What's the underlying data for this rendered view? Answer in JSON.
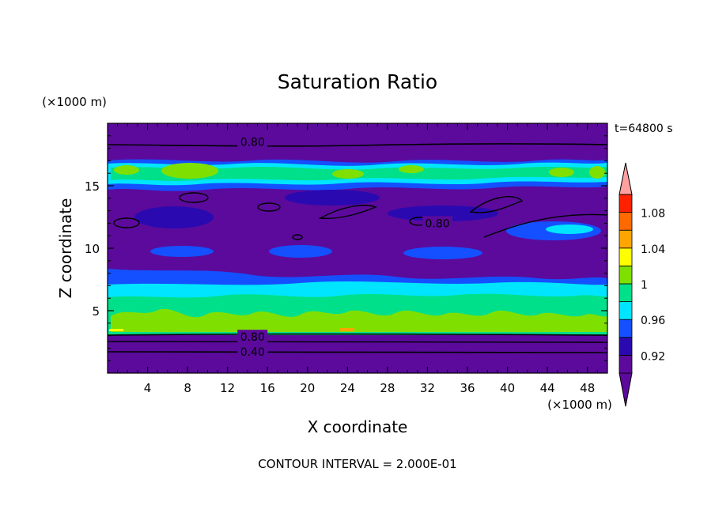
{
  "chart_data": {
    "type": "heatmap",
    "title": "Saturation Ratio",
    "xlabel": "X coordinate",
    "ylabel": "Z coordinate",
    "x_unit": "(×1000 m)",
    "y_unit": "(×1000 m)",
    "time_label": "t=64800 s",
    "footer": "CONTOUR INTERVAL = 2.000E-01",
    "xlim": [
      0,
      50
    ],
    "ylim": [
      0,
      20
    ],
    "x_ticks": [
      "4",
      "8",
      "12",
      "16",
      "20",
      "24",
      "28",
      "32",
      "36",
      "40",
      "44",
      "48"
    ],
    "x_tick_values": [
      4,
      8,
      12,
      16,
      20,
      24,
      28,
      32,
      36,
      40,
      44,
      48
    ],
    "y_ticks": [
      "5",
      "10",
      "15"
    ],
    "y_tick_values": [
      5,
      10,
      15
    ],
    "colorbar_labels": [
      "0.92",
      "0.96",
      "1",
      "1.04",
      "1.08"
    ],
    "colorbar_label_values": [
      0.92,
      0.96,
      1.0,
      1.04,
      1.08
    ],
    "colorbar_levels": [
      0.9,
      0.92,
      0.94,
      0.96,
      0.98,
      1.0,
      1.02,
      1.04,
      1.06,
      1.08,
      1.1
    ],
    "colorbar_colors": [
      "#5b0a9c",
      "#2a0ab0",
      "#1450ff",
      "#00e5ff",
      "#00e08a",
      "#7fe000",
      "#ffff00",
      "#ffa500",
      "#ff6a00",
      "#ff2000",
      "#ffa0a0"
    ],
    "contour_labels": [
      {
        "text": "0.80",
        "x": 14.5,
        "y": 18.5
      },
      {
        "text": "0.80",
        "x": 33.0,
        "y": 12.0
      },
      {
        "text": "0.80",
        "x": 14.5,
        "y": 2.9
      },
      {
        "text": "0.40",
        "x": 14.5,
        "y": 1.7
      }
    ]
  }
}
